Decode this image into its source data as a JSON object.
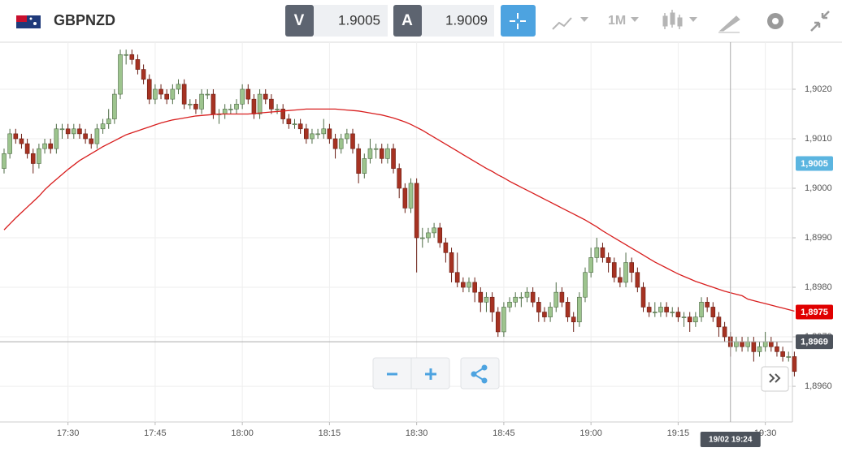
{
  "toolbar": {
    "symbol": "GBPNZD",
    "sell_label": "V",
    "sell_price": 1.9005,
    "buy_label": "A",
    "buy_price": 1.9009,
    "timeframe": "1M"
  },
  "chart_data": {
    "type": "candlestick",
    "up_color": "#9dc48e",
    "down_color": "#a63222",
    "ma_color": "#d81e1e",
    "ylim": [
      1.89528,
      1.90295
    ],
    "yticks": [
      {
        "value": 1.902,
        "label": "1,9020"
      },
      {
        "value": 1.901,
        "label": "1,9010"
      },
      {
        "value": 1.9,
        "label": "1,9000"
      },
      {
        "value": 1.899,
        "label": "1,8990"
      },
      {
        "value": 1.898,
        "label": "1,8980"
      },
      {
        "value": 1.897,
        "label": "1,8970"
      },
      {
        "value": 1.896,
        "label": "1,8960"
      }
    ],
    "xticks": [
      {
        "value": 11,
        "label": "17:30"
      },
      {
        "value": 26,
        "label": "17:45"
      },
      {
        "value": 41,
        "label": "18:00"
      },
      {
        "value": 56,
        "label": "18:15"
      },
      {
        "value": 71,
        "label": "18:30"
      },
      {
        "value": 86,
        "label": "18:45"
      },
      {
        "value": 101,
        "label": "19:00"
      },
      {
        "value": 116,
        "label": "19:15"
      },
      {
        "value": 131,
        "label": "19:30"
      }
    ],
    "grid": true,
    "price_tags": [
      {
        "value": 1.9005,
        "label": "1,9005",
        "color": "#5bb5e0"
      },
      {
        "value": 1.8975,
        "label": "1,8975",
        "color": "#e00000"
      }
    ],
    "crosshair": {
      "x": {
        "value": 125,
        "label": "19/02 19:24"
      },
      "y": {
        "value": 1.8969,
        "label": "1,8969"
      }
    },
    "candles": [
      [
        1.9004,
        1.9008,
        1.9003,
        1.9007
      ],
      [
        1.9007,
        1.9012,
        1.9006,
        1.9011
      ],
      [
        1.9011,
        1.9012,
        1.9009,
        1.901
      ],
      [
        1.901,
        1.9011,
        1.9008,
        1.9009
      ],
      [
        1.9009,
        1.901,
        1.9006,
        1.9007
      ],
      [
        1.9007,
        1.9008,
        1.9003,
        1.9005
      ],
      [
        1.9005,
        1.9009,
        1.9004,
        1.9008
      ],
      [
        1.9008,
        1.901,
        1.9007,
        1.9009
      ],
      [
        1.9009,
        1.901,
        1.9007,
        1.9008
      ],
      [
        1.9008,
        1.9013,
        1.9007,
        1.9012
      ],
      [
        1.9012,
        1.9013,
        1.901,
        1.9012
      ],
      [
        1.9012,
        1.9013,
        1.901,
        1.9011
      ],
      [
        1.9011,
        1.9013,
        1.901,
        1.9012
      ],
      [
        1.9012,
        1.9013,
        1.901,
        1.9011
      ],
      [
        1.9011,
        1.9012,
        1.9009,
        1.901
      ],
      [
        1.901,
        1.9011,
        1.9008,
        1.9009
      ],
      [
        1.9009,
        1.9013,
        1.9008,
        1.9012
      ],
      [
        1.9012,
        1.9014,
        1.9011,
        1.9013
      ],
      [
        1.9013,
        1.9016,
        1.9012,
        1.9014
      ],
      [
        1.9014,
        1.902,
        1.9013,
        1.9019
      ],
      [
        1.9019,
        1.9028,
        1.9018,
        1.9027
      ],
      [
        1.9027,
        1.9028,
        1.9025,
        1.9027
      ],
      [
        1.9027,
        1.9028,
        1.9025,
        1.9026
      ],
      [
        1.9026,
        1.9027,
        1.9023,
        1.9024
      ],
      [
        1.9024,
        1.9025,
        1.9021,
        1.9022
      ],
      [
        1.9022,
        1.9023,
        1.9017,
        1.9018
      ],
      [
        1.9018,
        1.9021,
        1.9017,
        1.902
      ],
      [
        1.902,
        1.9021,
        1.9018,
        1.9019
      ],
      [
        1.9019,
        1.902,
        1.9017,
        1.9018
      ],
      [
        1.9018,
        1.9021,
        1.9017,
        1.902
      ],
      [
        1.902,
        1.9022,
        1.9019,
        1.9021
      ],
      [
        1.9021,
        1.9022,
        1.9016,
        1.9017
      ],
      [
        1.9017,
        1.9018,
        1.9016,
        1.9017
      ],
      [
        1.9017,
        1.9018,
        1.9015,
        1.9016
      ],
      [
        1.9016,
        1.902,
        1.9015,
        1.9019
      ],
      [
        1.9019,
        1.902,
        1.9018,
        1.9019
      ],
      [
        1.9019,
        1.902,
        1.9014,
        1.9015
      ],
      [
        1.9015,
        1.9016,
        1.9013,
        1.9015
      ],
      [
        1.9015,
        1.9017,
        1.9014,
        1.9016
      ],
      [
        1.9016,
        1.9017,
        1.9015,
        1.9016
      ],
      [
        1.9016,
        1.9018,
        1.9015,
        1.9017
      ],
      [
        1.9017,
        1.9021,
        1.9016,
        1.902
      ],
      [
        1.902,
        1.9021,
        1.9017,
        1.9018
      ],
      [
        1.9018,
        1.9019,
        1.9014,
        1.9015
      ],
      [
        1.9015,
        1.902,
        1.9014,
        1.9019
      ],
      [
        1.9019,
        1.902,
        1.9017,
        1.9018
      ],
      [
        1.9018,
        1.9019,
        1.9015,
        1.9016
      ],
      [
        1.9016,
        1.9017,
        1.9015,
        1.9016
      ],
      [
        1.9016,
        1.9017,
        1.9013,
        1.9014
      ],
      [
        1.9014,
        1.9015,
        1.9012,
        1.9013
      ],
      [
        1.9013,
        1.9014,
        1.9012,
        1.9013
      ],
      [
        1.9013,
        1.9014,
        1.9011,
        1.9012
      ],
      [
        1.9012,
        1.9013,
        1.9009,
        1.901
      ],
      [
        1.901,
        1.9012,
        1.9009,
        1.9011
      ],
      [
        1.9011,
        1.9012,
        1.901,
        1.9011
      ],
      [
        1.9011,
        1.9014,
        1.901,
        1.9012
      ],
      [
        1.9012,
        1.9013,
        1.9009,
        1.901
      ],
      [
        1.901,
        1.9011,
        1.9006,
        1.9008
      ],
      [
        1.9008,
        1.9011,
        1.9007,
        1.901
      ],
      [
        1.901,
        1.9012,
        1.9009,
        1.9011
      ],
      [
        1.9011,
        1.9012,
        1.9007,
        1.9008
      ],
      [
        1.9008,
        1.9009,
        1.9001,
        1.9003
      ],
      [
        1.9003,
        1.9007,
        1.9002,
        1.9006
      ],
      [
        1.9006,
        1.901,
        1.9005,
        1.9008
      ],
      [
        1.9008,
        1.9009,
        1.9006,
        1.9008
      ],
      [
        1.9008,
        1.9009,
        1.9005,
        1.9006
      ],
      [
        1.9006,
        1.9009,
        1.9005,
        1.9008
      ],
      [
        1.9008,
        1.9009,
        1.9003,
        1.9004
      ],
      [
        1.9004,
        1.9005,
        1.8998,
        1.9
      ],
      [
        1.9,
        1.9001,
        1.8995,
        1.8996
      ],
      [
        1.8996,
        1.9002,
        1.8995,
        1.9001
      ],
      [
        1.9001,
        1.9002,
        1.8983,
        1.899
      ],
      [
        1.899,
        1.8992,
        1.8988,
        1.899
      ],
      [
        1.899,
        1.8992,
        1.8989,
        1.8991
      ],
      [
        1.8991,
        1.8993,
        1.899,
        1.8992
      ],
      [
        1.8992,
        1.8993,
        1.8988,
        1.8989
      ],
      [
        1.8989,
        1.899,
        1.8985,
        1.8987
      ],
      [
        1.8987,
        1.8988,
        1.8981,
        1.8983
      ],
      [
        1.8983,
        1.8987,
        1.898,
        1.8981
      ],
      [
        1.8981,
        1.8982,
        1.8979,
        1.898
      ],
      [
        1.898,
        1.8982,
        1.8979,
        1.8981
      ],
      [
        1.8981,
        1.8982,
        1.8977,
        1.8979
      ],
      [
        1.8979,
        1.898,
        1.8975,
        1.8977
      ],
      [
        1.8977,
        1.8979,
        1.8975,
        1.8978
      ],
      [
        1.8978,
        1.8979,
        1.8973,
        1.8975
      ],
      [
        1.8975,
        1.8976,
        1.897,
        1.8971
      ],
      [
        1.8971,
        1.8977,
        1.897,
        1.8976
      ],
      [
        1.8976,
        1.8978,
        1.8975,
        1.8977
      ],
      [
        1.8977,
        1.8979,
        1.8976,
        1.8978
      ],
      [
        1.8978,
        1.8979,
        1.8976,
        1.8978
      ],
      [
        1.8978,
        1.898,
        1.8977,
        1.8979
      ],
      [
        1.8979,
        1.898,
        1.8976,
        1.8977
      ],
      [
        1.8977,
        1.8978,
        1.8973,
        1.8975
      ],
      [
        1.8975,
        1.8976,
        1.8973,
        1.8974
      ],
      [
        1.8974,
        1.8977,
        1.8973,
        1.8976
      ],
      [
        1.8976,
        1.8981,
        1.8975,
        1.8979
      ],
      [
        1.8979,
        1.898,
        1.8976,
        1.8977
      ],
      [
        1.8977,
        1.8978,
        1.8973,
        1.8974
      ],
      [
        1.8974,
        1.8975,
        1.8971,
        1.8973
      ],
      [
        1.8973,
        1.8979,
        1.8972,
        1.8978
      ],
      [
        1.8978,
        1.8984,
        1.8977,
        1.8983
      ],
      [
        1.8983,
        1.8988,
        1.8982,
        1.8986
      ],
      [
        1.8986,
        1.899,
        1.8985,
        1.8988
      ],
      [
        1.8988,
        1.8989,
        1.8985,
        1.8986
      ],
      [
        1.8986,
        1.8987,
        1.8983,
        1.8985
      ],
      [
        1.8985,
        1.8986,
        1.8981,
        1.8982
      ],
      [
        1.8982,
        1.8984,
        1.898,
        1.8981
      ],
      [
        1.8981,
        1.8987,
        1.898,
        1.8985
      ],
      [
        1.8985,
        1.8986,
        1.8981,
        1.8983
      ],
      [
        1.8983,
        1.8984,
        1.8979,
        1.898
      ],
      [
        1.898,
        1.8981,
        1.8975,
        1.8976
      ],
      [
        1.8976,
        1.8977,
        1.8974,
        1.8975
      ],
      [
        1.8975,
        1.8977,
        1.8974,
        1.8975
      ],
      [
        1.8975,
        1.8977,
        1.8974,
        1.8976
      ],
      [
        1.8976,
        1.8977,
        1.8974,
        1.8975
      ],
      [
        1.8975,
        1.8976,
        1.8974,
        1.8975
      ],
      [
        1.8975,
        1.8976,
        1.8973,
        1.8974
      ],
      [
        1.8974,
        1.8975,
        1.8972,
        1.8974
      ],
      [
        1.8974,
        1.8975,
        1.8971,
        1.8973
      ],
      [
        1.8973,
        1.8975,
        1.8972,
        1.8974
      ],
      [
        1.8974,
        1.8978,
        1.8973,
        1.8977
      ],
      [
        1.8977,
        1.8978,
        1.8975,
        1.8976
      ],
      [
        1.8976,
        1.8977,
        1.8973,
        1.8974
      ],
      [
        1.8974,
        1.8975,
        1.897,
        1.8972
      ],
      [
        1.8972,
        1.8973,
        1.8969,
        1.897
      ],
      [
        1.897,
        1.8971,
        1.8966,
        1.8968
      ],
      [
        1.8968,
        1.897,
        1.8967,
        1.8969
      ],
      [
        1.8969,
        1.897,
        1.8967,
        1.8968
      ],
      [
        1.8968,
        1.897,
        1.8967,
        1.8969
      ],
      [
        1.8969,
        1.897,
        1.8965,
        1.8967
      ],
      [
        1.8967,
        1.8969,
        1.8966,
        1.8968
      ],
      [
        1.8968,
        1.8971,
        1.8967,
        1.8969
      ],
      [
        1.8969,
        1.897,
        1.8967,
        1.8968
      ],
      [
        1.8968,
        1.8969,
        1.8966,
        1.8967
      ],
      [
        1.8967,
        1.8968,
        1.8965,
        1.8966
      ],
      [
        1.8966,
        1.8967,
        1.8965,
        1.8966
      ],
      [
        1.8966,
        1.8967,
        1.8962,
        1.8963
      ]
    ],
    "ma_values": [
      1.89916,
      1.89928,
      1.8994,
      1.89951,
      1.89962,
      1.89973,
      1.89984,
      1.89997,
      1.90008,
      1.90018,
      1.90028,
      1.90038,
      1.90047,
      1.90056,
      1.90063,
      1.9007,
      1.90077,
      1.90084,
      1.9009,
      1.90096,
      1.90102,
      1.90108,
      1.90112,
      1.90116,
      1.9012,
      1.90124,
      1.90128,
      1.90132,
      1.90135,
      1.90138,
      1.9014,
      1.90142,
      1.90144,
      1.90146,
      1.90147,
      1.90148,
      1.90149,
      1.9015,
      1.9015,
      1.9015,
      1.9015,
      1.9015,
      1.9015,
      1.90151,
      1.90152,
      1.90153,
      1.90154,
      1.90155,
      1.90156,
      1.90157,
      1.90158,
      1.90159,
      1.9016,
      1.9016,
      1.9016,
      1.9016,
      1.9016,
      1.9016,
      1.90159,
      1.90158,
      1.90157,
      1.90156,
      1.90154,
      1.90152,
      1.9015,
      1.90148,
      1.90145,
      1.90142,
      1.90138,
      1.90134,
      1.90129,
      1.90123,
      1.90117,
      1.9011,
      1.90103,
      1.90096,
      1.90089,
      1.90082,
      1.90075,
      1.90068,
      1.90061,
      1.90054,
      1.90047,
      1.9004,
      1.90034,
      1.90027,
      1.90021,
      1.90014,
      1.90008,
      1.90002,
      1.89996,
      1.8999,
      1.89984,
      1.89978,
      1.89972,
      1.89966,
      1.8996,
      1.89954,
      1.89948,
      1.89942,
      1.89936,
      1.89929,
      1.89922,
      1.89914,
      1.89907,
      1.899,
      1.89893,
      1.89886,
      1.89879,
      1.89872,
      1.89865,
      1.89858,
      1.89851,
      1.89845,
      1.89839,
      1.89833,
      1.89827,
      1.89822,
      1.89817,
      1.89812,
      1.89808,
      1.89804,
      1.898,
      1.89796,
      1.89792,
      1.89789,
      1.89786,
      1.89783,
      1.89776,
      1.89773,
      1.8977,
      1.89767,
      1.89764,
      1.89761,
      1.89758,
      1.89755,
      1.89752
    ]
  }
}
